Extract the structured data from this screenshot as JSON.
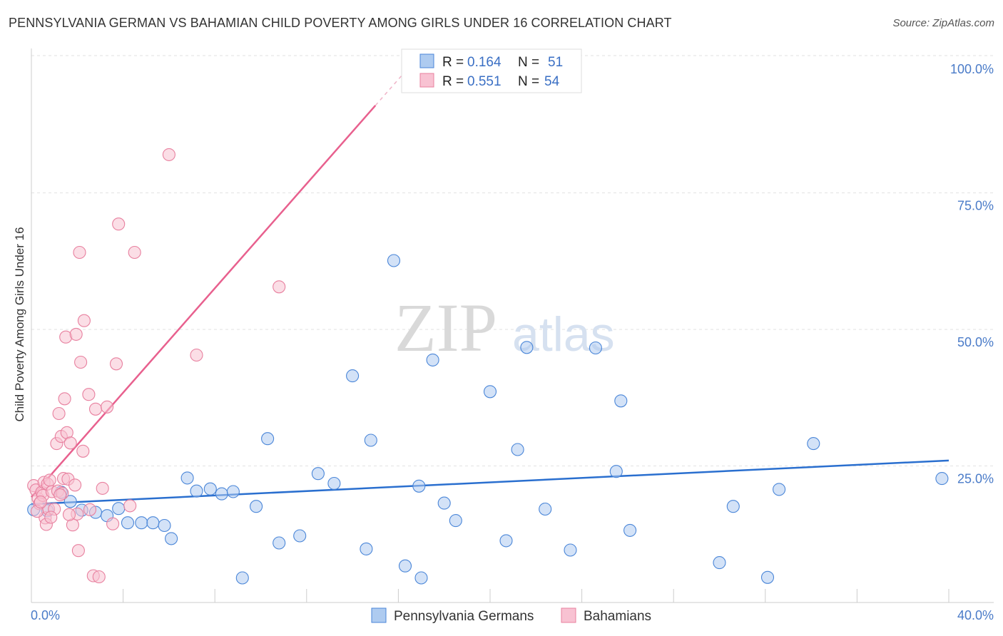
{
  "header": {
    "title": "PENNSYLVANIA GERMAN VS BAHAMIAN CHILD POVERTY AMONG GIRLS UNDER 16 CORRELATION CHART",
    "source": "Source: ZipAtlas.com"
  },
  "watermark": {
    "zip": "ZIP",
    "atlas": "atlas"
  },
  "legend": {
    "rows": [
      {
        "r_label": "R =",
        "r_value": "0.164",
        "n_label": "N =",
        "n_value": "51"
      },
      {
        "r_label": "R =",
        "r_value": "0.551",
        "n_label": "N =",
        "n_value": "54"
      }
    ]
  },
  "bottom_legend": {
    "items": [
      "Pennsylvania Germans",
      "Bahamians"
    ]
  },
  "chart_data": {
    "type": "scatter",
    "title": "PENNSYLVANIA GERMAN VS BAHAMIAN CHILD POVERTY AMONG GIRLS UNDER 16 CORRELATION CHART",
    "xlabel": "",
    "ylabel": "Child Poverty Among Girls Under 16",
    "xlim": [
      0,
      40
    ],
    "ylim": [
      0,
      100
    ],
    "x_tick_labels": [
      "0.0%",
      "40.0%"
    ],
    "y_tick_values": [
      25,
      50,
      75,
      100
    ],
    "y_tick_labels": [
      "25.0%",
      "50.0%",
      "75.0%",
      "100.0%"
    ],
    "grid": true,
    "colors": {
      "pennsylvania_fill": "#aecbf0",
      "pennsylvania_stroke": "#4a86d8",
      "pennsylvania_line": "#2a6fcf",
      "bahamian_fill": "#f8c2d2",
      "bahamian_stroke": "#e8809f",
      "bahamian_line": "#e8608e",
      "axis_label": "#4a7bc8"
    },
    "series": [
      {
        "name": "Pennsylvania Germans",
        "r": 0.164,
        "n": 51,
        "trend": {
          "x0": 0,
          "y0": 18.0,
          "x1": 40,
          "y1": 26.0
        },
        "points": [
          [
            0.1,
            17.0
          ],
          [
            0.7,
            16.8
          ],
          [
            1.3,
            20.2
          ],
          [
            1.7,
            18.5
          ],
          [
            2.2,
            16.9
          ],
          [
            2.8,
            16.5
          ],
          [
            3.3,
            15.9
          ],
          [
            3.8,
            17.2
          ],
          [
            4.2,
            14.6
          ],
          [
            4.8,
            14.6
          ],
          [
            5.3,
            14.6
          ],
          [
            5.8,
            14.1
          ],
          [
            6.1,
            11.7
          ],
          [
            6.8,
            22.8
          ],
          [
            7.2,
            20.4
          ],
          [
            7.8,
            20.8
          ],
          [
            8.3,
            19.9
          ],
          [
            8.8,
            20.3
          ],
          [
            9.2,
            4.5
          ],
          [
            9.8,
            17.6
          ],
          [
            10.3,
            30.0
          ],
          [
            10.8,
            10.9
          ],
          [
            11.7,
            12.2
          ],
          [
            12.5,
            23.6
          ],
          [
            13.2,
            21.8
          ],
          [
            14.0,
            41.5
          ],
          [
            14.6,
            9.8
          ],
          [
            14.8,
            29.7
          ],
          [
            15.8,
            62.6
          ],
          [
            16.3,
            6.7
          ],
          [
            16.9,
            21.3
          ],
          [
            17.0,
            4.5
          ],
          [
            17.5,
            44.4
          ],
          [
            18.0,
            18.2
          ],
          [
            18.5,
            15.0
          ],
          [
            20.0,
            38.6
          ],
          [
            20.7,
            11.3
          ],
          [
            21.2,
            28.0
          ],
          [
            21.6,
            46.7
          ],
          [
            22.4,
            17.1
          ],
          [
            23.5,
            9.6
          ],
          [
            24.6,
            46.6
          ],
          [
            25.5,
            24.0
          ],
          [
            25.7,
            36.9
          ],
          [
            26.1,
            13.2
          ],
          [
            30.0,
            7.3
          ],
          [
            30.6,
            17.6
          ],
          [
            32.1,
            4.6
          ],
          [
            32.6,
            20.7
          ],
          [
            34.1,
            29.1
          ],
          [
            39.7,
            22.7
          ]
        ]
      },
      {
        "name": "Bahamians",
        "r": 0.551,
        "n": 54,
        "trend": {
          "x0": 0,
          "y0": 19.3,
          "x1": 15.0,
          "y1": 91.0,
          "dash_to_x": 17.2,
          "dash_to_y": 101.5
        },
        "points": [
          [
            0.1,
            21.4
          ],
          [
            0.2,
            20.6
          ],
          [
            0.3,
            19.0
          ],
          [
            0.35,
            18.1
          ],
          [
            0.45,
            20.2
          ],
          [
            0.5,
            19.6
          ],
          [
            0.55,
            22.0
          ],
          [
            0.6,
            15.5
          ],
          [
            0.65,
            14.3
          ],
          [
            0.7,
            21.7
          ],
          [
            0.75,
            17.1
          ],
          [
            0.8,
            22.4
          ],
          [
            0.9,
            20.3
          ],
          [
            1.0,
            17.1
          ],
          [
            1.1,
            29.1
          ],
          [
            1.15,
            20.4
          ],
          [
            1.2,
            34.6
          ],
          [
            1.3,
            30.4
          ],
          [
            1.35,
            20.0
          ],
          [
            1.4,
            22.7
          ],
          [
            1.45,
            37.3
          ],
          [
            1.5,
            48.6
          ],
          [
            1.55,
            31.1
          ],
          [
            1.6,
            22.6
          ],
          [
            1.7,
            29.2
          ],
          [
            1.8,
            14.2
          ],
          [
            1.9,
            21.5
          ],
          [
            1.95,
            49.1
          ],
          [
            2.0,
            16.2
          ],
          [
            2.05,
            9.5
          ],
          [
            2.1,
            64.1
          ],
          [
            2.15,
            44.0
          ],
          [
            2.25,
            27.7
          ],
          [
            2.3,
            51.6
          ],
          [
            2.5,
            38.1
          ],
          [
            2.55,
            17.0
          ],
          [
            2.7,
            4.9
          ],
          [
            2.8,
            35.4
          ],
          [
            2.95,
            4.7
          ],
          [
            3.1,
            20.9
          ],
          [
            3.3,
            35.8
          ],
          [
            3.55,
            14.4
          ],
          [
            3.7,
            43.7
          ],
          [
            3.8,
            69.3
          ],
          [
            4.3,
            17.7
          ],
          [
            4.5,
            64.1
          ],
          [
            6.0,
            82.0
          ],
          [
            7.2,
            45.3
          ],
          [
            10.8,
            57.8
          ],
          [
            0.25,
            16.7
          ],
          [
            0.4,
            18.4
          ],
          [
            0.85,
            15.6
          ],
          [
            1.25,
            19.7
          ],
          [
            1.65,
            16.1
          ]
        ]
      }
    ]
  }
}
